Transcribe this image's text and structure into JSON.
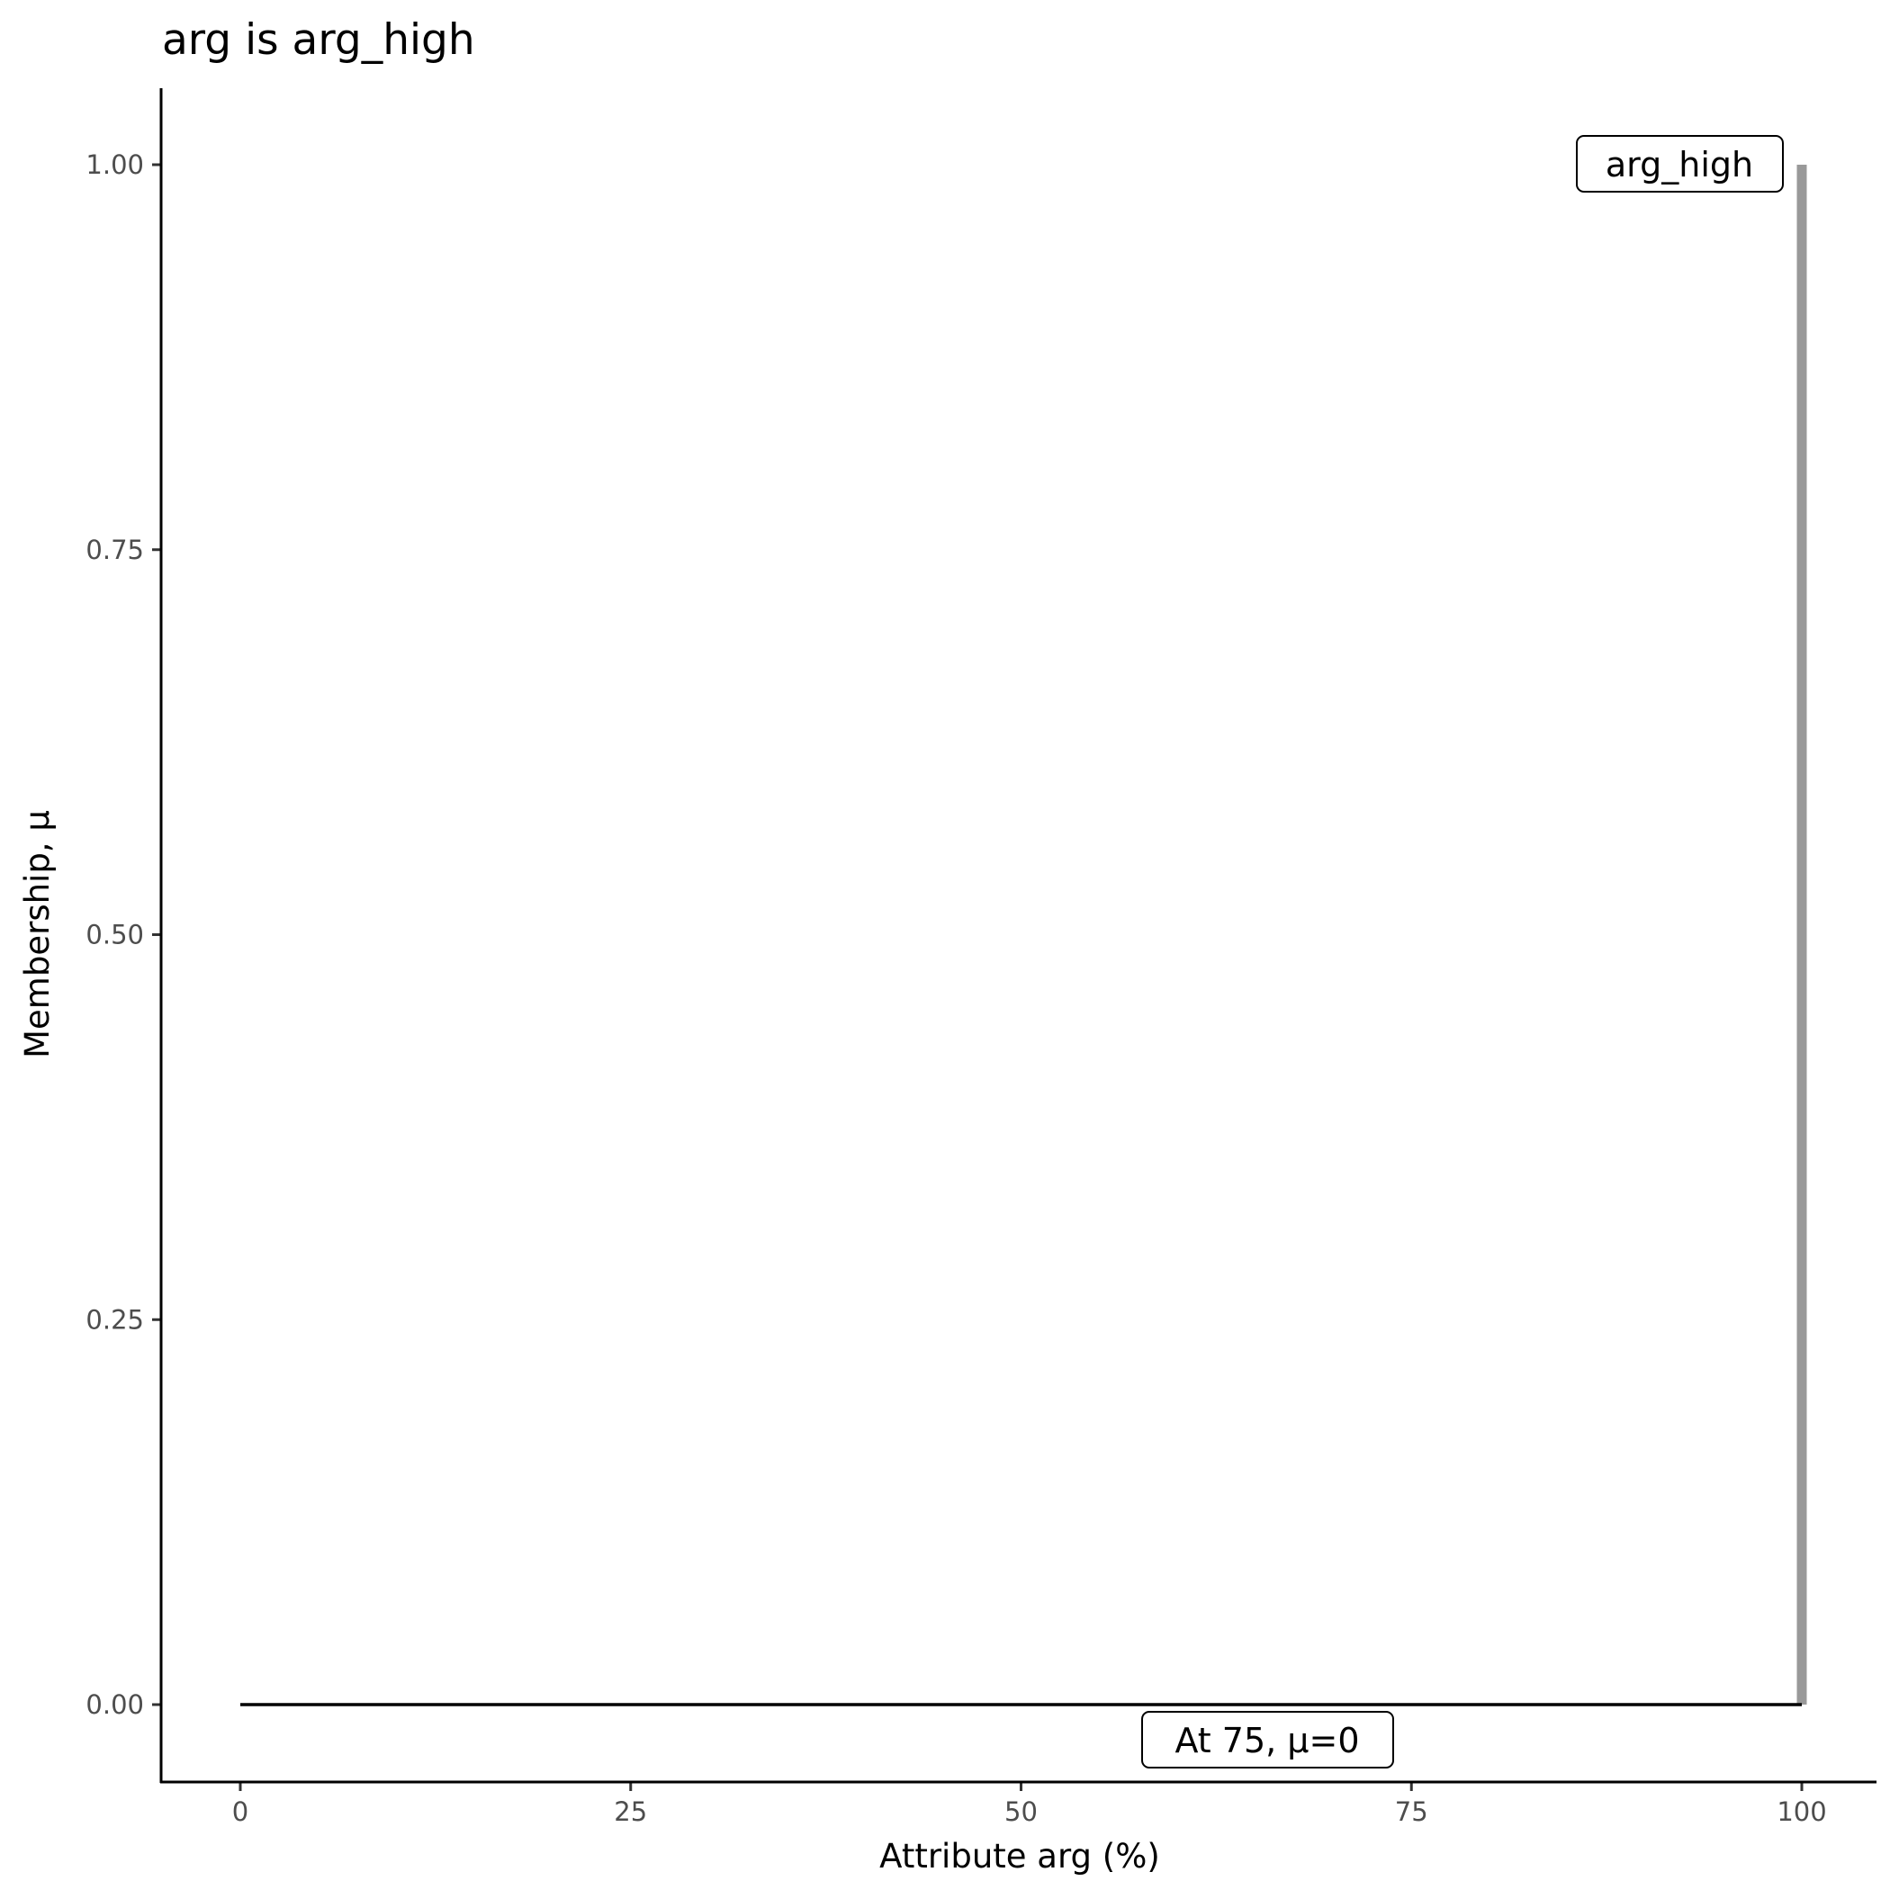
{
  "chart_data": {
    "type": "line",
    "title": "arg is arg_high",
    "xlabel": "Attribute arg (%)",
    "ylabel": "Membership, μ",
    "xlim": [
      -5,
      105
    ],
    "ylim": [
      -0.05,
      1.05
    ],
    "xticks": [
      0,
      25,
      50,
      75,
      100
    ],
    "xtick_labels": [
      "0",
      "25",
      "50",
      "75",
      "100"
    ],
    "yticks": [
      0,
      0.25,
      0.5,
      0.75,
      1
    ],
    "ytick_labels": [
      "0.00",
      "0.25",
      "0.50",
      "0.75",
      "1.00"
    ],
    "grid": false,
    "series": [
      {
        "x": [
          0,
          100
        ],
        "y": [
          0,
          0
        ],
        "color": "#000000"
      },
      {
        "x": [
          100,
          100
        ],
        "y": [
          0,
          1
        ],
        "color": "#999999"
      }
    ],
    "annotations": [
      {
        "text": "arg_high",
        "x": 100,
        "y": 1
      },
      {
        "text": "At 75, μ=0",
        "x": 75,
        "y": 0
      }
    ]
  }
}
